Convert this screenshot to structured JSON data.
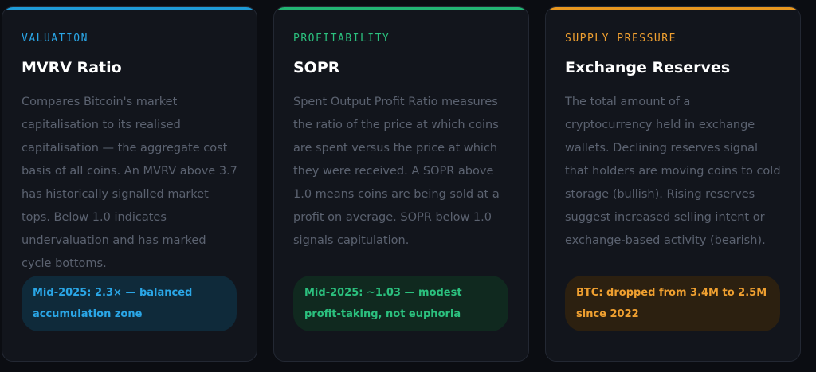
{
  "cards": [
    {
      "tag": "VALUATION",
      "title": "MVRV Ratio",
      "body": "Compares Bitcoin's market capitalisation to its realised capitalisation — the aggregate cost basis of all coins. An MVRV above 3.7 has historically signalled market tops. Below 1.0 indicates undervaluation and has marked cycle bottoms.",
      "note": "Mid-2025: 2.3× — balanced accumulation zone"
    },
    {
      "tag": "PROFITABILITY",
      "title": "SOPR",
      "body": "Spent Output Profit Ratio measures the ratio of the price at which coins are spent versus the price at which they were received. A SOPR above 1.0 means coins are being sold at a profit on average. SOPR below 1.0 signals capitulation.",
      "note": "Mid-2025: ~1.03 — modest profit-taking, not euphoria"
    },
    {
      "tag": "SUPPLY PRESSURE",
      "title": "Exchange Reserves",
      "body": "The total amount of a cryptocurrency held in exchange wallets. Declining reserves signal that holders are moving coins to cold storage (bullish). Rising reserves suggest increased selling intent or exchange-based activity (bearish).",
      "note": "BTC: dropped from 3.4M to 2.5M since 2022"
    }
  ]
}
